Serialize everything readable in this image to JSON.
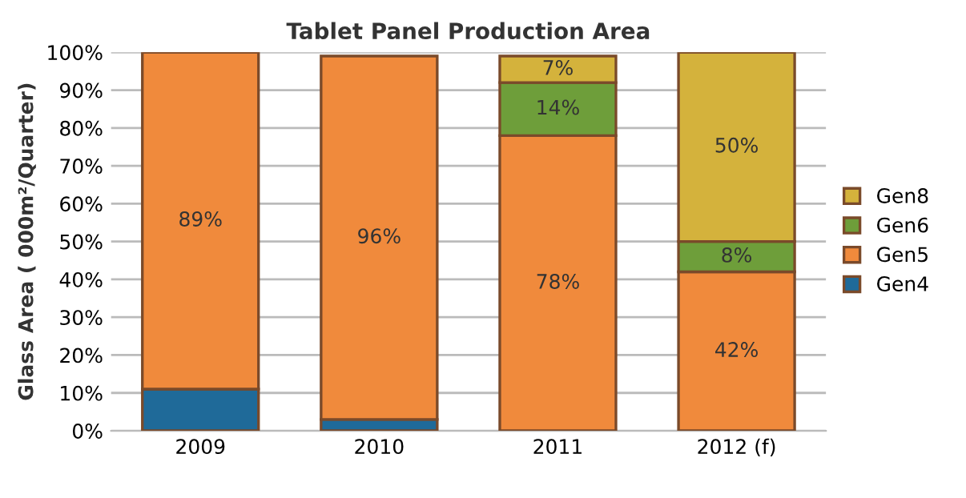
{
  "chart_data": {
    "type": "bar",
    "title": "Tablet Panel Production Area",
    "ylabel": "Glass Area ( 000m²/Quarter)",
    "categories": [
      "2009",
      "2010",
      "2011",
      "2012 (f)"
    ],
    "stacked": true,
    "series": [
      {
        "name": "Gen4",
        "color": "#1f6a99",
        "values": [
          11,
          3,
          null,
          null
        ],
        "value_labels": [
          null,
          null,
          null,
          null
        ]
      },
      {
        "name": "Gen5",
        "color": "#f08a3c",
        "values": [
          89,
          96,
          78,
          42
        ],
        "value_labels": [
          "89%",
          "96%",
          "78%",
          "42%"
        ]
      },
      {
        "name": "Gen6",
        "color": "#6e9e3a",
        "values": [
          null,
          null,
          14,
          8
        ],
        "value_labels": [
          null,
          null,
          "14%",
          "8%"
        ]
      },
      {
        "name": "Gen8",
        "color": "#d4b23c",
        "values": [
          null,
          null,
          7,
          50
        ],
        "value_labels": [
          null,
          null,
          "7%",
          "50%"
        ]
      }
    ],
    "ylim": [
      0,
      100
    ],
    "yticks": [
      {
        "value": 0,
        "label": "0%"
      },
      {
        "value": 10,
        "label": "10%"
      },
      {
        "value": 20,
        "label": "20%"
      },
      {
        "value": 30,
        "label": "30%"
      },
      {
        "value": 40,
        "label": "40%"
      },
      {
        "value": 50,
        "label": "50%"
      },
      {
        "value": 60,
        "label": "60%"
      },
      {
        "value": 70,
        "label": "70%"
      },
      {
        "value": 80,
        "label": "80%"
      },
      {
        "value": 90,
        "label": "90%"
      },
      {
        "value": 100,
        "label": "100%"
      }
    ],
    "grid": "y",
    "legend": "right"
  }
}
